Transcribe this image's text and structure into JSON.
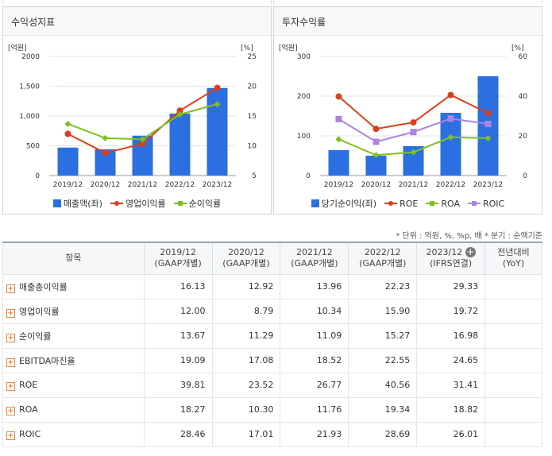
{
  "left_panel": {
    "title": "수익성지표",
    "left_unit": "[억원]",
    "right_unit": "[%]",
    "legend": [
      {
        "label": "매출액(좌)",
        "kind": "bar",
        "color": "#2b6fe0"
      },
      {
        "label": "영업이익률",
        "kind": "line",
        "color": "#d9401b"
      },
      {
        "label": "순이익률",
        "kind": "line",
        "color": "#7dc21e"
      }
    ]
  },
  "right_panel": {
    "title": "투자수익률",
    "left_unit": "[억원]",
    "right_unit": "[%]",
    "legend": [
      {
        "label": "당기순이익(좌)",
        "kind": "bar",
        "color": "#2b6fe0"
      },
      {
        "label": "ROE",
        "kind": "line",
        "color": "#d9401b"
      },
      {
        "label": "ROA",
        "kind": "line",
        "color": "#7dc21e"
      },
      {
        "label": "ROIC",
        "kind": "line",
        "color": "#a985e0"
      }
    ]
  },
  "chart_data": [
    {
      "type": "bar",
      "title": "수익성지표",
      "categories": [
        "2019/12",
        "2020/12",
        "2021/12",
        "2022/12",
        "2023/12"
      ],
      "left_ticks": [
        "0",
        "500",
        "1,000",
        "1,500",
        "2000"
      ],
      "right_ticks": [
        "5",
        "10",
        "15",
        "20",
        "25"
      ],
      "ylim_left": [
        0,
        2000
      ],
      "ylim_right": [
        5,
        25
      ],
      "series": [
        {
          "name": "매출액(좌)",
          "axis": "left",
          "kind": "bar",
          "color": "#2b6fe0",
          "values": [
            470,
            440,
            670,
            1040,
            1470
          ]
        },
        {
          "name": "영업이익률",
          "axis": "right",
          "kind": "line",
          "color": "#d9401b",
          "marker": "circle",
          "values": [
            12.0,
            8.79,
            10.34,
            15.9,
            19.72
          ]
        },
        {
          "name": "순이익률",
          "axis": "right",
          "kind": "line",
          "color": "#7dc21e",
          "marker": "diamond",
          "values": [
            13.67,
            11.29,
            11.09,
            15.27,
            16.98
          ]
        }
      ]
    },
    {
      "type": "bar",
      "title": "투자수익률",
      "categories": [
        "2019/12",
        "2020/12",
        "2021/12",
        "2022/12",
        "2023/12"
      ],
      "left_ticks": [
        "0",
        "100",
        "200",
        "300"
      ],
      "right_ticks": [
        "0",
        "20",
        "40",
        "60"
      ],
      "ylim_left": [
        0,
        300
      ],
      "ylim_right": [
        0,
        60
      ],
      "series": [
        {
          "name": "당기순이익(좌)",
          "axis": "left",
          "kind": "bar",
          "color": "#2b6fe0",
          "values": [
            64,
            50,
            74,
            158,
            250
          ]
        },
        {
          "name": "ROE",
          "axis": "right",
          "kind": "line",
          "color": "#d9401b",
          "marker": "circle",
          "values": [
            39.81,
            23.52,
            26.77,
            40.56,
            31.41
          ]
        },
        {
          "name": "ROA",
          "axis": "right",
          "kind": "line",
          "color": "#7dc21e",
          "marker": "diamond",
          "values": [
            18.27,
            10.3,
            11.76,
            19.34,
            18.82
          ]
        },
        {
          "name": "ROIC",
          "axis": "right",
          "kind": "line",
          "color": "#a985e0",
          "marker": "square",
          "values": [
            28.46,
            17.01,
            21.93,
            28.69,
            26.01
          ]
        }
      ]
    }
  ],
  "note": "* 단위 : 억원, %, %p, 배     * 분기 : 순액기준",
  "table": {
    "header_item": "항목",
    "columns": [
      {
        "period": "2019/12",
        "basis": "(GAAP개별)"
      },
      {
        "period": "2020/12",
        "basis": "(GAAP개별)"
      },
      {
        "period": "2021/12",
        "basis": "(GAAP개별)"
      },
      {
        "period": "2022/12",
        "basis": "(GAAP개별)"
      },
      {
        "period": "2023/12",
        "basis": "(IFRS연결)"
      }
    ],
    "yoy_header_line1": "전년대비",
    "yoy_header_line2": "(YoY)",
    "expand_icon": "+",
    "rows": [
      {
        "label": "매출총이익률",
        "values": [
          "16.13",
          "12.92",
          "13.96",
          "22.23",
          "29.33"
        ],
        "yoy": ""
      },
      {
        "label": "영업이익률",
        "values": [
          "12.00",
          "8.79",
          "10.34",
          "15.90",
          "19.72"
        ],
        "yoy": ""
      },
      {
        "label": "순이익률",
        "values": [
          "13.67",
          "11.29",
          "11.09",
          "15.27",
          "16.98"
        ],
        "yoy": ""
      },
      {
        "label": "EBITDA마진율",
        "values": [
          "19.09",
          "17.08",
          "18.52",
          "22.55",
          "24.65"
        ],
        "yoy": ""
      },
      {
        "label": "ROE",
        "values": [
          "39.81",
          "23.52",
          "26.77",
          "40.56",
          "31.41"
        ],
        "yoy": ""
      },
      {
        "label": "ROA",
        "values": [
          "18.27",
          "10.30",
          "11.76",
          "19.34",
          "18.82"
        ],
        "yoy": ""
      },
      {
        "label": "ROIC",
        "values": [
          "28.46",
          "17.01",
          "21.93",
          "28.69",
          "26.01"
        ],
        "yoy": ""
      }
    ]
  }
}
